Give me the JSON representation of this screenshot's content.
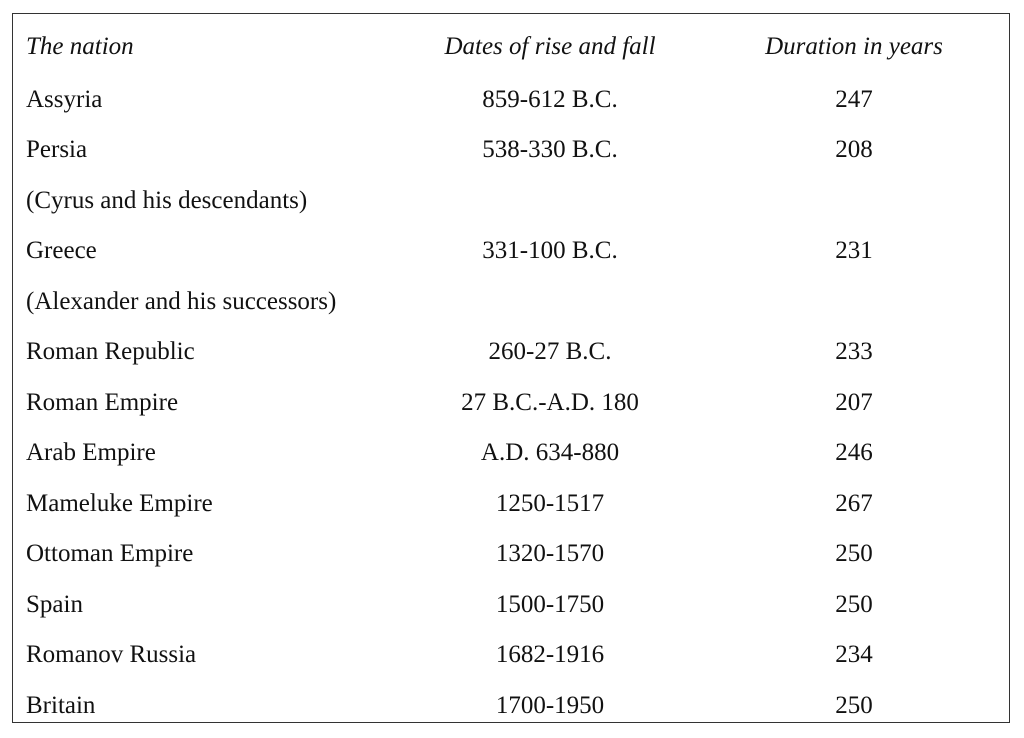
{
  "table": {
    "header": [
      "The nation",
      "Dates of rise and fall",
      "Duration in years"
    ],
    "rows": [
      [
        "Assyria",
        "859-612 B.C.",
        247
      ],
      [
        "Persia",
        "538-330 B.C.",
        208
      ],
      [
        "(Cyrus and his descendants)"
      ],
      [
        "Greece",
        "331-100 B.C.",
        231
      ],
      [
        "(Alexander and his successors)"
      ],
      [
        "Roman Republic",
        "260-27 B.C.",
        233
      ],
      [
        "Roman Empire",
        "27 B.C.-A.D. 180",
        207
      ],
      [
        "Arab Empire",
        "A.D. 634-880",
        246
      ],
      [
        "Mameluke Empire",
        "1250-1517",
        267
      ],
      [
        "Ottoman Empire",
        "1320-1570",
        250
      ],
      [
        "Spain",
        "1500-1750",
        250
      ],
      [
        "Romanov Russia",
        "1682-1916",
        234
      ],
      [
        "Britain",
        "1700-1950",
        250
      ]
    ]
  }
}
